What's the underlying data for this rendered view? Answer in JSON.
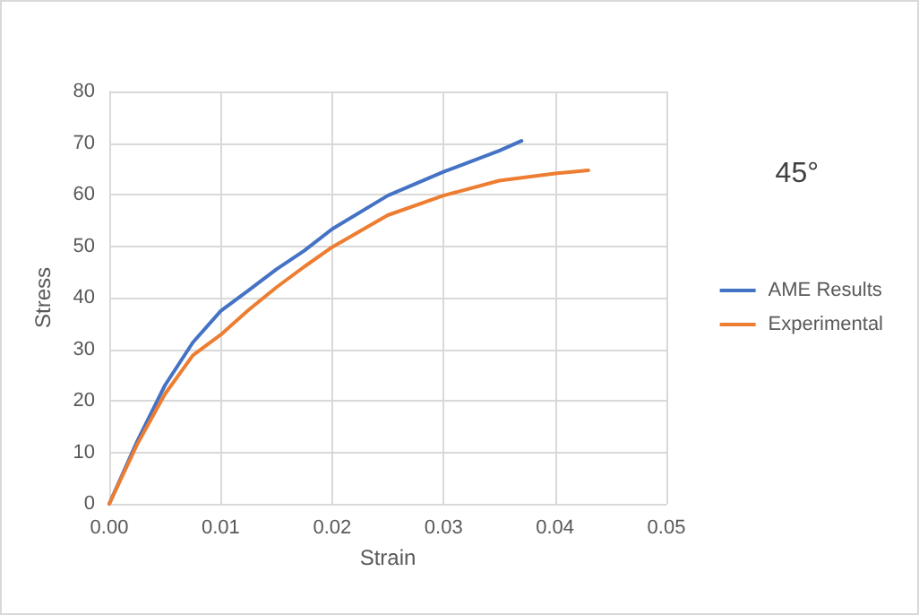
{
  "chart_data": {
    "type": "line",
    "xlabel": "Strain",
    "ylabel": "Stress",
    "annotations": [
      "45°"
    ],
    "xlim": [
      0,
      0.05
    ],
    "xticks": [
      {
        "value": 0,
        "label": "0.00"
      },
      {
        "value": 0.01,
        "label": "0.01"
      },
      {
        "value": 0.02,
        "label": "0.02"
      },
      {
        "value": 0.03,
        "label": "0.03"
      },
      {
        "value": 0.04,
        "label": "0.04"
      },
      {
        "value": 0.05,
        "label": "0.05"
      }
    ],
    "ylim": [
      0,
      80
    ],
    "yticks": [
      0,
      10,
      20,
      30,
      40,
      50,
      60,
      70,
      80
    ],
    "grid": true,
    "legend": "right",
    "marker": "none",
    "series": [
      {
        "name": "AME Results",
        "color": "#4472c4",
        "x": [
          0,
          0.0025,
          0.005,
          0.0075,
          0.01,
          0.0125,
          0.015,
          0.0175,
          0.02,
          0.025,
          0.03,
          0.035,
          0.037
        ],
        "values": [
          0,
          12.1,
          23,
          31.3,
          37.4,
          41.4,
          45.5,
          49.1,
          53.3,
          59.8,
          64.4,
          68.5,
          70.4
        ]
      },
      {
        "name": "Experimental",
        "color": "#ed7d31",
        "x": [
          0,
          0.0025,
          0.005,
          0.0075,
          0.01,
          0.0125,
          0.015,
          0.0175,
          0.02,
          0.025,
          0.03,
          0.035,
          0.04,
          0.043
        ],
        "values": [
          0,
          11.5,
          21.3,
          28.8,
          32.8,
          37.6,
          42,
          46,
          49.8,
          56,
          59.8,
          62.7,
          64.1,
          64.7
        ]
      }
    ]
  }
}
